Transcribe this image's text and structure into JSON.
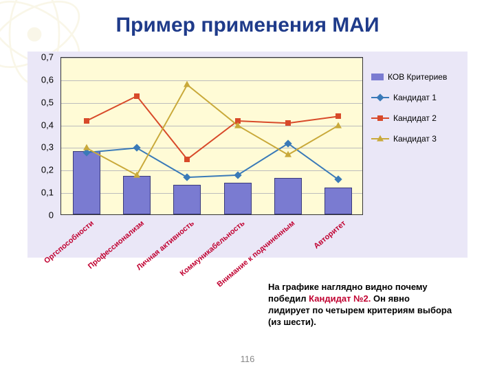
{
  "title": {
    "text": "Пример применения МАИ",
    "fontsize": 30
  },
  "page_number": "116",
  "footnote": {
    "prefix": "На графике наглядно видно почему победил ",
    "highlight": "Кандидат №2.",
    "suffix": " Он явно лидирует по четырем критериям выбора (из шести)."
  },
  "chart": {
    "type": "bar+line",
    "background_outer": "#eae7f7",
    "background_plot": "#fffbd6",
    "plot_border_color": "#333333",
    "grid_color": "#bcbcbc",
    "ylim": [
      0,
      0.7
    ],
    "yticks": [
      0,
      0.1,
      0.2,
      0.3,
      0.4,
      0.5,
      0.6,
      0.7
    ],
    "ytick_labels": [
      "0",
      "0,1",
      "0,2",
      "0,3",
      "0,4",
      "0,5",
      "0,6",
      "0,7"
    ],
    "ytick_fontsize": 13,
    "categories": [
      "Оргспособности",
      "Профессионализм",
      "Личная активность",
      "Коммуникабельность",
      "Внимание к подчиненным",
      "Авторитет"
    ],
    "x_label_color": "#c00030",
    "x_label_fontsize": 11,
    "x_label_rotation_deg": -40,
    "bar_series": {
      "label": "КОВ Критериев",
      "color": "#7a7bd1",
      "border_color": "#3a3a7a",
      "width": 0.55,
      "values": [
        0.28,
        0.17,
        0.13,
        0.14,
        0.16,
        0.12
      ]
    },
    "line_series": [
      {
        "label": "Кандидат 1",
        "color": "#3a7ab8",
        "marker": "diamond",
        "line_width": 2,
        "values": [
          0.28,
          0.3,
          0.17,
          0.18,
          0.32,
          0.16
        ]
      },
      {
        "label": "Кандидат 2",
        "color": "#d84a2a",
        "marker": "square",
        "line_width": 2,
        "values": [
          0.42,
          0.53,
          0.25,
          0.42,
          0.41,
          0.44
        ]
      },
      {
        "label": "Кандидат 3",
        "color": "#c9a93a",
        "marker": "triangle",
        "line_width": 2,
        "values": [
          0.3,
          0.18,
          0.58,
          0.4,
          0.27,
          0.4
        ]
      }
    ],
    "legend": {
      "position": "right",
      "fontsize": 12,
      "text_color": "#000000"
    }
  },
  "decor_color": "#e9dfa8"
}
